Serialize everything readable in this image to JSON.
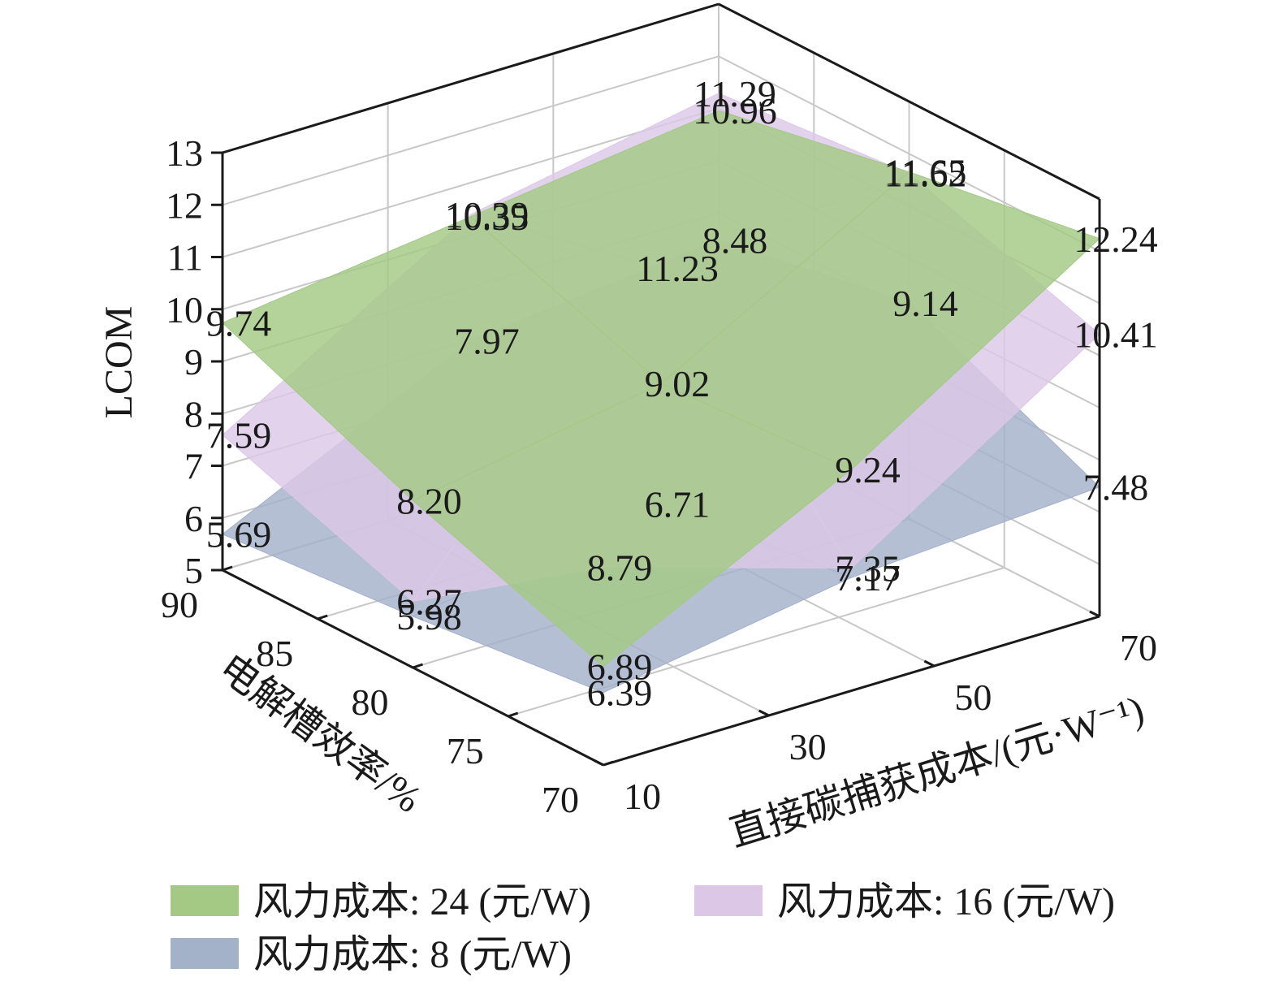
{
  "chart_data": {
    "type": "surface3d",
    "zlabel": "LCOM",
    "ylabel": "电解槽效率/%",
    "xlabel": "直接碳捕获成本/(元·W⁻¹)",
    "x_ticks": [
      "10",
      "30",
      "50",
      "70"
    ],
    "y_ticks": [
      "70",
      "75",
      "80",
      "85",
      "90"
    ],
    "z_ticks": [
      "5",
      "6",
      "7",
      "8",
      "9",
      "10",
      "11",
      "12",
      "13"
    ],
    "xlim": [
      10,
      70
    ],
    "ylim": [
      70,
      90
    ],
    "zlim": [
      5,
      13
    ],
    "grid": true,
    "legend_position": "bottom",
    "series": [
      {
        "name": "风力成本: 24 (元/W)",
        "color": "#a3c985",
        "points": [
          {
            "x": 10,
            "y": 90,
            "z": 9.74,
            "label": "9.74"
          },
          {
            "x": 10,
            "y": 80,
            "z": 8.2,
            "label": "8.20"
          },
          {
            "x": 10,
            "y": 70,
            "z": 6.89,
            "label": "6.89"
          },
          {
            "x": 40,
            "y": 90,
            "z": 10.35,
            "label": "10.35"
          },
          {
            "x": 40,
            "y": 80,
            "z": 9.02,
            "label": "9.02"
          },
          {
            "x": 40,
            "y": 70,
            "z": 9.24,
            "label": "9.24"
          },
          {
            "x": 70,
            "y": 90,
            "z": 10.96,
            "label": "10.96"
          },
          {
            "x": 70,
            "y": 80,
            "z": 11.65,
            "label": "11.65"
          },
          {
            "x": 70,
            "y": 70,
            "z": 12.24,
            "label": "12.24"
          }
        ]
      },
      {
        "name": "风力成本: 16 (元/W)",
        "color": "#dcc8e6",
        "points": [
          {
            "x": 10,
            "y": 90,
            "z": 7.59,
            "label": "7.59"
          },
          {
            "x": 10,
            "y": 80,
            "z": 6.27,
            "label": "6.27"
          },
          {
            "x": 10,
            "y": 70,
            "z": 8.79,
            "label": "8.79"
          },
          {
            "x": 40,
            "y": 90,
            "z": 10.39,
            "label": "10.39"
          },
          {
            "x": 40,
            "y": 80,
            "z": 11.23,
            "label": "11.23"
          },
          {
            "x": 40,
            "y": 70,
            "z": 7.35,
            "label": "7.35"
          },
          {
            "x": 70,
            "y": 90,
            "z": 11.29,
            "label": "11.29"
          },
          {
            "x": 70,
            "y": 80,
            "z": 11.62,
            "label": "11.62"
          },
          {
            "x": 70,
            "y": 70,
            "z": 10.41,
            "label": "10.41"
          }
        ]
      },
      {
        "name": "风力成本: 8 (元/W)",
        "color": "#a3b1c9",
        "points": [
          {
            "x": 10,
            "y": 90,
            "z": 5.69,
            "label": "5.69"
          },
          {
            "x": 10,
            "y": 80,
            "z": 5.98,
            "label": "5.98"
          },
          {
            "x": 10,
            "y": 70,
            "z": 6.39,
            "label": "6.39"
          },
          {
            "x": 40,
            "y": 90,
            "z": 7.97,
            "label": "7.97"
          },
          {
            "x": 40,
            "y": 80,
            "z": 6.71,
            "label": "6.71"
          },
          {
            "x": 40,
            "y": 70,
            "z": 7.17,
            "label": "7.17"
          },
          {
            "x": 70,
            "y": 90,
            "z": 8.48,
            "label": "8.48"
          },
          {
            "x": 70,
            "y": 80,
            "z": 9.14,
            "label": "9.14"
          },
          {
            "x": 70,
            "y": 70,
            "z": 7.48,
            "label": "7.48"
          }
        ]
      }
    ]
  }
}
